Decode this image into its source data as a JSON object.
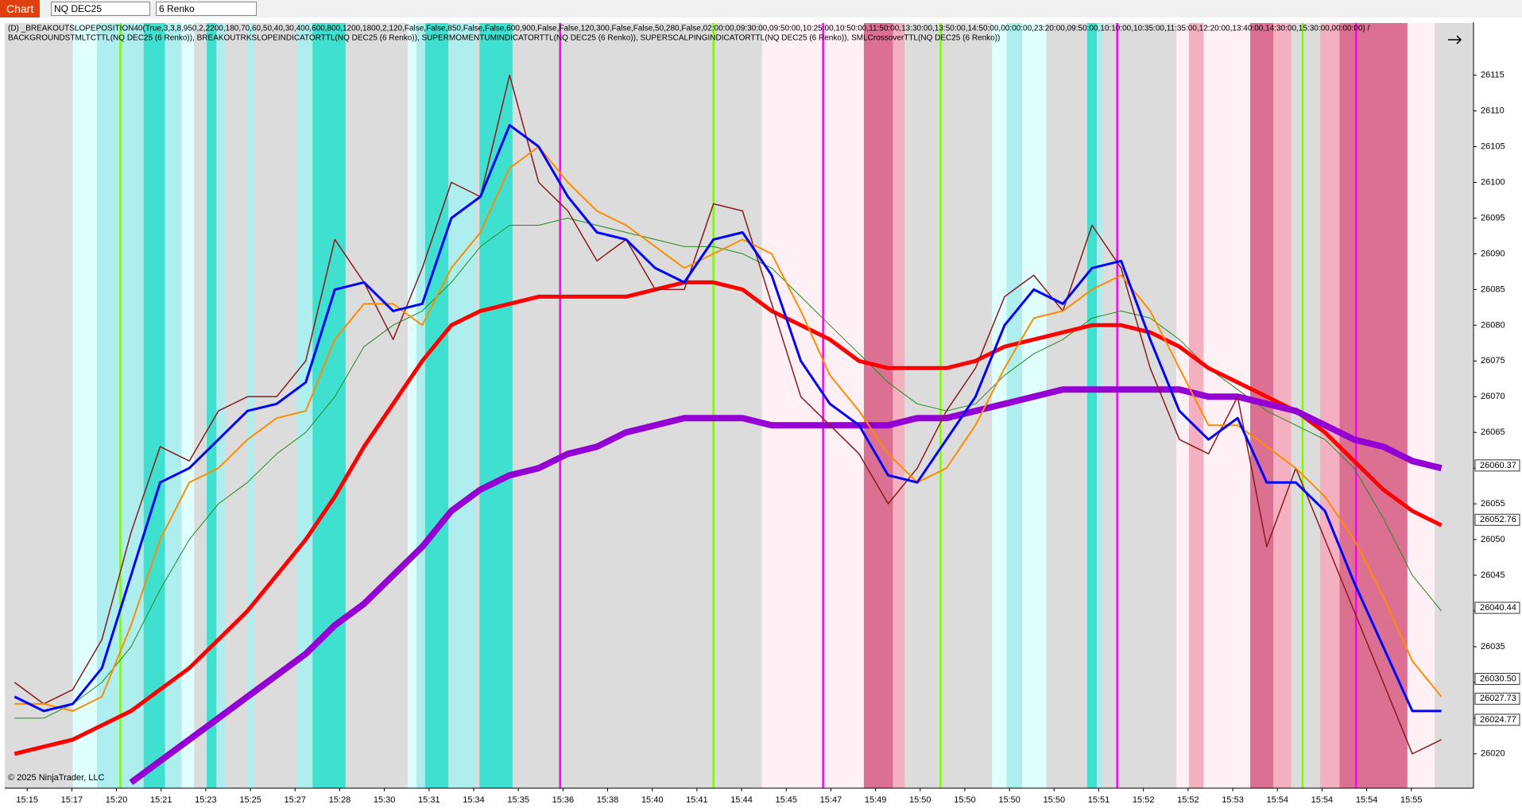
{
  "toolbar": {
    "tab": "Chart",
    "instrument": "NQ DEC25",
    "bar_type": "6 Renko"
  },
  "header": {
    "line1": "(D) _BREAKOUTSLOPEPOSITION40(True,3,3,8,950,2,2200,180,70,60,50,40,30,400,600,800,1200,1800,2,120,False,False,850,False,False,600,900,False,False,120,300,False,False,50,280,False,02:00:00,09:30:00,09:50:00,10:25:00,10:50:00,11:50:00,13:30:00,13:50:00,14:50:00,00:00:00,23:20:00,09:50:00,10:10:00,10:35:00,11:35:00,12:20:00,13:40:00,14:30:00,15:30:00,00:00:00) /",
    "line2": "BACKGROUNDSTMLTCTTL(NQ DEC25 (6 Renko)), BREAKOUTRKSLOPEINDICATORTTL(NQ DEC25 (6 Renko)), SUPERMOMENTUMINDICATORTTL(NQ DEC25 (6 Renko)), SUPERSCALPINGINDICATORTTL(NQ DEC25 (6 Renko)), SMLCrossoverTTL(NQ DEC25 (6 Renko))"
  },
  "copyright": "© 2025 NinjaTrader, LLC",
  "chart_data": {
    "type": "line",
    "xtick_labels": [
      "15:15",
      "15:17",
      "15:20",
      "15:21",
      "15:23",
      "15:25",
      "15:27",
      "15:28",
      "15:30",
      "15:31",
      "15:34",
      "15:35",
      "15:36",
      "15:38",
      "15:40",
      "15:41",
      "15:44",
      "15:45",
      "15:47",
      "15:49",
      "15:50",
      "15:50",
      "15:50",
      "15:50",
      "15:51",
      "15:52",
      "15:52",
      "15:53",
      "15:54",
      "15:54",
      "15:54",
      "15:55"
    ],
    "ylim": [
      26015.2,
      26122.3
    ],
    "yticks": [
      26020,
      26025,
      26030,
      26035,
      26040,
      26045,
      26050,
      26055,
      26060,
      26065,
      26070,
      26075,
      26080,
      26085,
      26090,
      26095,
      26100,
      26105,
      26110,
      26115
    ],
    "series": [
      {
        "color": "#228b22",
        "width": 1,
        "values": [
          26025,
          26025,
          26027,
          26030,
          26035,
          26043,
          26050,
          26055,
          26058,
          26062,
          26065,
          26070,
          26077,
          26080,
          26082,
          26086,
          26091,
          26094,
          26094,
          26095,
          26094,
          26093,
          26092,
          26091,
          26091,
          26090,
          26088,
          26084,
          26080,
          26076,
          26072,
          26069,
          26068,
          26069,
          26073,
          26076,
          26078,
          26081,
          26082,
          26081,
          26078,
          26074,
          26071,
          26068,
          26066,
          26064,
          26060,
          26053,
          26045,
          26040
        ]
      },
      {
        "color": "#ff0000",
        "width": 5,
        "values": [
          26020,
          26021,
          26022,
          26024,
          26026,
          26029,
          26032,
          26036,
          26040,
          26045,
          26050,
          26056,
          26063,
          26069,
          26075,
          26080,
          26082,
          26083,
          26084,
          26084,
          26084,
          26084,
          26085,
          26086,
          26086,
          26085,
          26082,
          26080,
          26078,
          26075,
          26074,
          26074,
          26074,
          26075,
          26077,
          26078,
          26079,
          26080,
          26080,
          26079,
          26077,
          26074,
          26072,
          26070,
          26068,
          26065,
          26061,
          26057,
          26054,
          26052
        ]
      },
      {
        "color": "#9400d3",
        "width": 8,
        "values": [
          null,
          null,
          null,
          null,
          26016,
          26019,
          26022,
          26025,
          26028,
          26031,
          26034,
          26038,
          26041,
          26045,
          26049,
          26054,
          26057,
          26059,
          26060,
          26062,
          26063,
          26065,
          26066,
          26067,
          26067,
          26067,
          26066,
          26066,
          26066,
          26066,
          26066,
          26067,
          26067,
          26068,
          26069,
          26070,
          26071,
          26071,
          26071,
          26071,
          26071,
          26070,
          26070,
          26069,
          26068,
          26066,
          26064,
          26063,
          26061,
          26060
        ]
      },
      {
        "color": "#8b1a1a",
        "width": 1.5,
        "values": [
          26030,
          26027,
          26029,
          26036,
          26051,
          26063,
          26061,
          26068,
          26070,
          26070,
          26075,
          26092,
          26086,
          26078,
          26088,
          26100,
          26098,
          26115,
          26100,
          26096,
          26089,
          26092,
          26085,
          26085,
          26097,
          26096,
          26083,
          26070,
          26066,
          26062,
          26055,
          26060,
          26068,
          26074,
          26084,
          26087,
          26082,
          26094,
          26088,
          26074,
          26064,
          26062,
          26070,
          26049,
          26060,
          26050,
          26040,
          26030,
          26020,
          26022
        ]
      },
      {
        "color": "#ff8c00",
        "width": 2,
        "values": [
          26027,
          26027,
          26026,
          26028,
          26038,
          26050,
          26058,
          26060,
          26064,
          26067,
          26068,
          26078,
          26083,
          26083,
          26080,
          26088,
          26093,
          26102,
          26105,
          26100,
          26096,
          26094,
          26091,
          26088,
          26090,
          26092,
          26090,
          26082,
          26073,
          26068,
          26062,
          26058,
          26060,
          26066,
          26074,
          26081,
          26082,
          26085,
          26087,
          26082,
          26074,
          26066,
          26066,
          26063,
          26060,
          26056,
          26050,
          26042,
          26033,
          26028
        ]
      },
      {
        "color": "#0000ff",
        "width": 3,
        "values": [
          26028,
          26026,
          26027,
          26032,
          26045,
          26058,
          26060,
          26064,
          26068,
          26069,
          26072,
          26085,
          26086,
          26082,
          26083,
          26095,
          26098,
          26108,
          26105,
          26098,
          26093,
          26092,
          26088,
          26086,
          26092,
          26093,
          26087,
          26075,
          26069,
          26066,
          26059,
          26058,
          26064,
          26070,
          26080,
          26085,
          26083,
          26088,
          26089,
          26078,
          26068,
          26064,
          26067,
          26058,
          26058,
          26054,
          26044,
          26035,
          26026,
          26026
        ]
      }
    ],
    "price_markers": [
      26060.37,
      26052.76,
      26040.44,
      {
        "value": 26030.5,
        "label": "26030.50"
      },
      26027.73,
      26024.77
    ]
  }
}
